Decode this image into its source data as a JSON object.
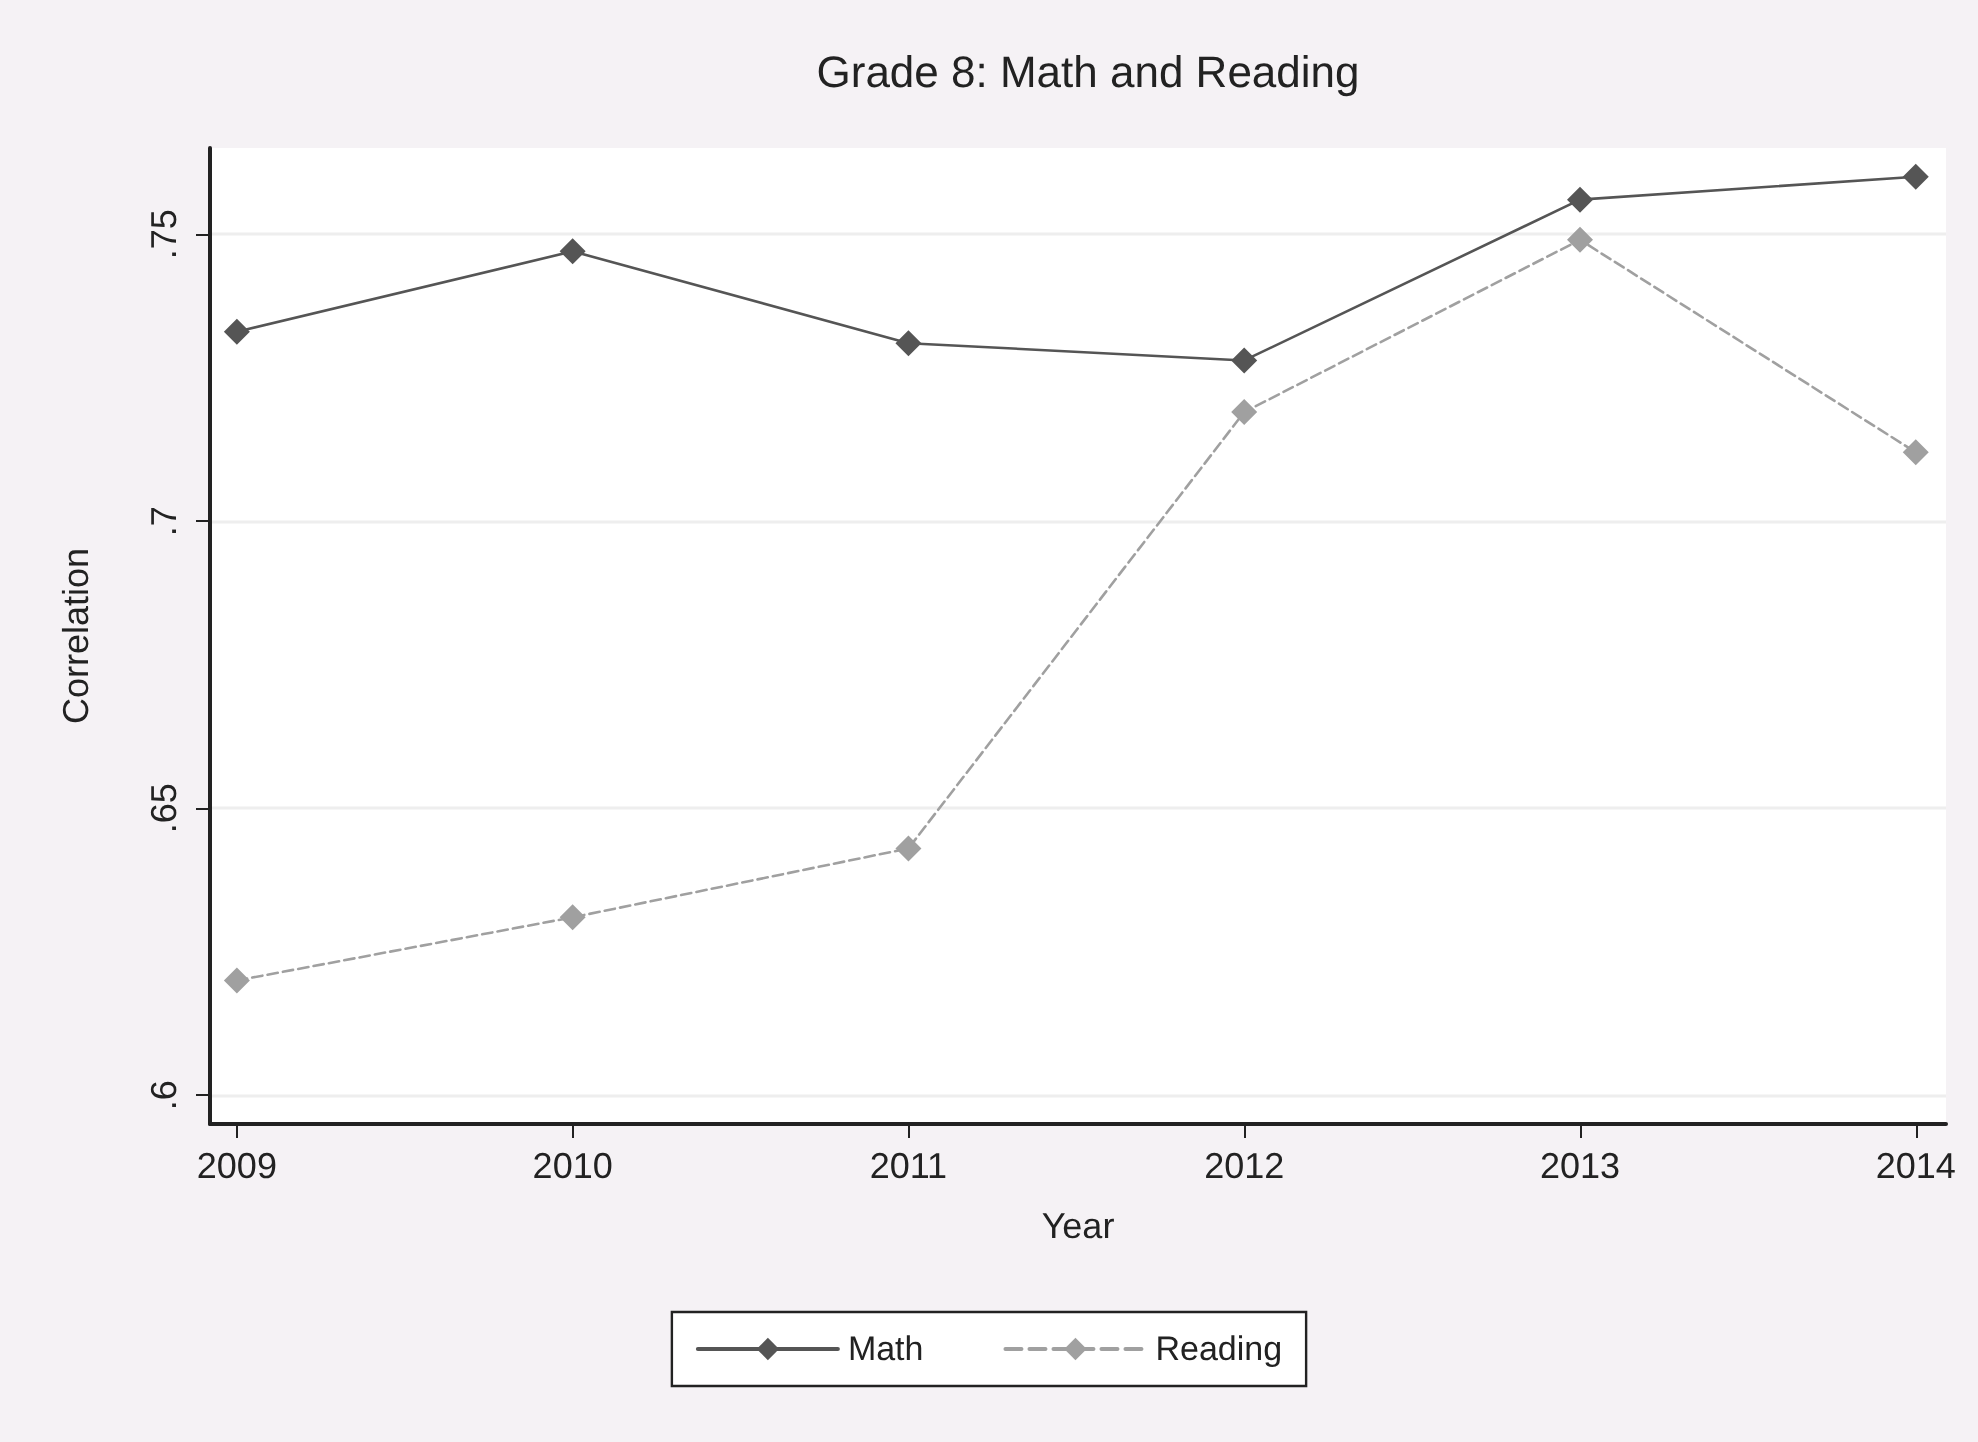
{
  "chart_data": {
    "type": "line",
    "title": "Grade 8: Math and Reading",
    "xlabel": "Year",
    "ylabel": "Correlation",
    "x": [
      2009,
      2010,
      2011,
      2012,
      2013,
      2014
    ],
    "series": [
      {
        "name": "Math",
        "color": "#555555",
        "line_style": "solid",
        "values": [
          0.733,
          0.747,
          0.731,
          0.728,
          0.756,
          0.76
        ]
      },
      {
        "name": "Reading",
        "color": "#a0a0a0",
        "line_style": "dashed",
        "values": [
          0.62,
          0.631,
          0.643,
          0.719,
          0.749,
          0.712
        ]
      }
    ],
    "xlim": [
      2008.92,
      2014.09
    ],
    "xticks": [
      2009,
      2010,
      2011,
      2012,
      2013,
      2014
    ],
    "ylim": [
      0.595,
      0.765
    ],
    "yticks": [
      {
        "value": 0.6,
        "label": ".6"
      },
      {
        "value": 0.65,
        "label": ".65"
      },
      {
        "value": 0.7,
        "label": ".7"
      },
      {
        "value": 0.75,
        "label": ".75"
      }
    ],
    "grid": "y",
    "legend": "bottom",
    "marker": "diamond"
  }
}
